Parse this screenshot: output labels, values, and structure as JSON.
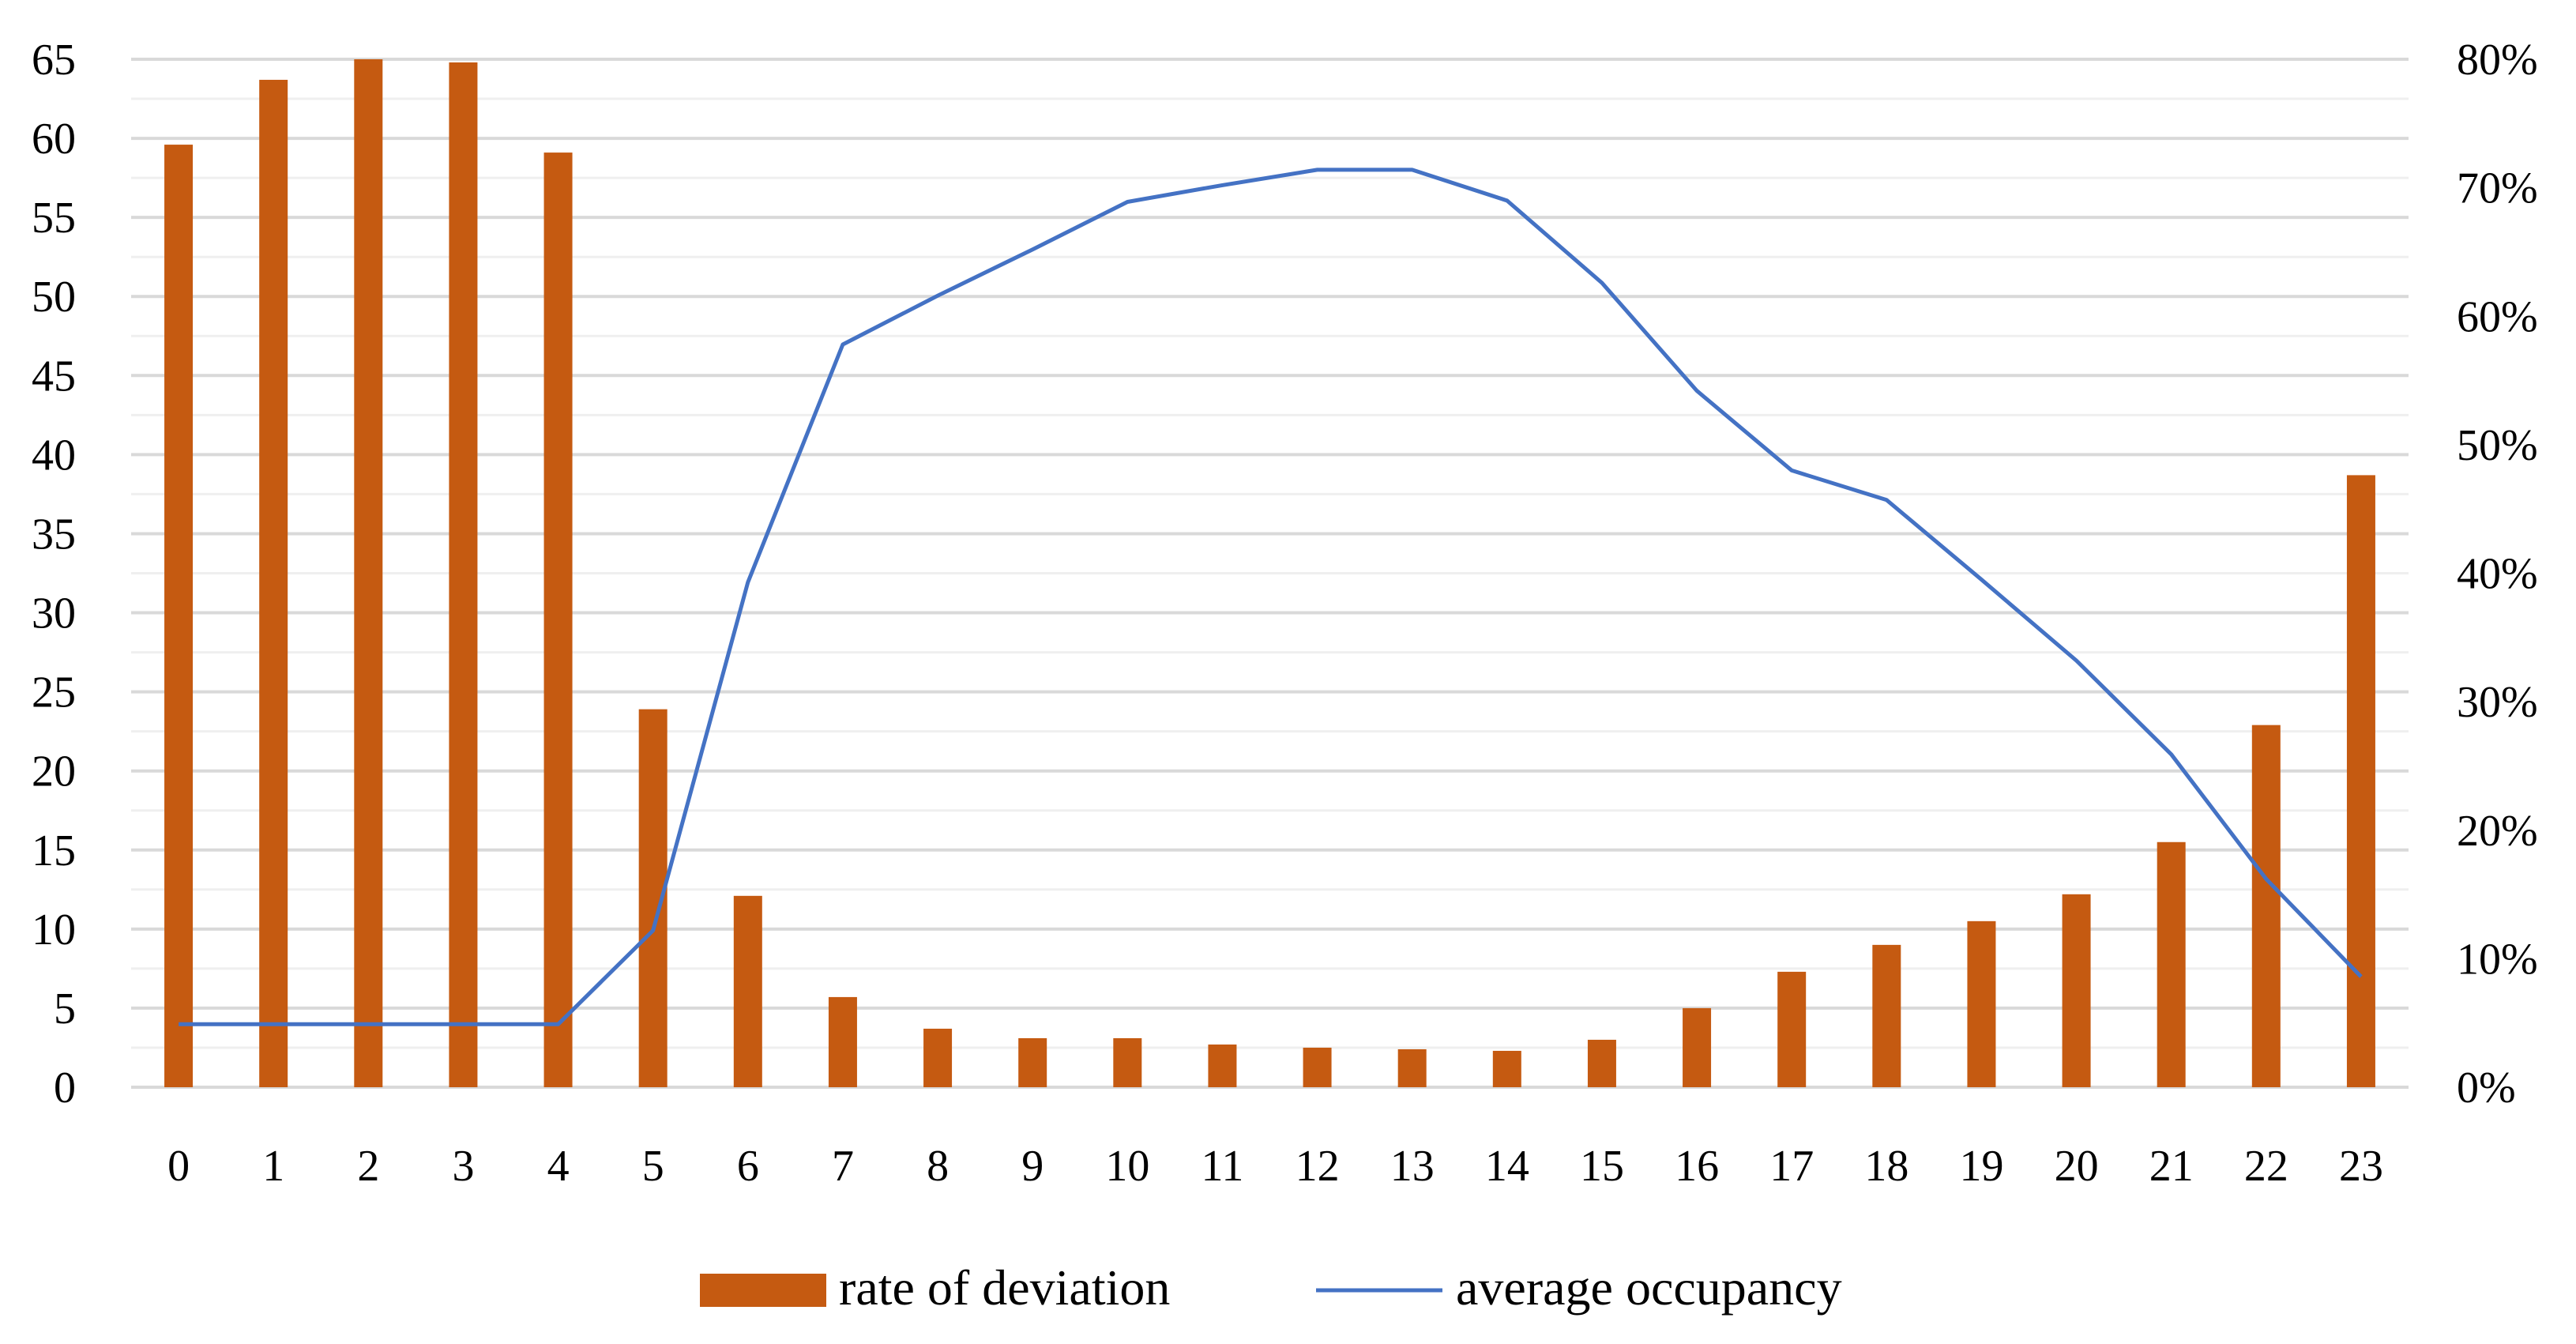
{
  "chart_data": {
    "type": "bar",
    "title": "",
    "xlabel": "",
    "ylabel": "",
    "categories": [
      "0",
      "1",
      "2",
      "3",
      "4",
      "5",
      "6",
      "7",
      "8",
      "9",
      "10",
      "11",
      "12",
      "13",
      "14",
      "15",
      "16",
      "17",
      "18",
      "19",
      "20",
      "21",
      "22",
      "23"
    ],
    "series": [
      {
        "name": "rate of deviation",
        "kind": "bar",
        "axis": "left",
        "color": "#c55a11",
        "values": [
          59.6,
          63.7,
          65.0,
          64.8,
          59.1,
          23.9,
          12.1,
          5.7,
          3.7,
          3.1,
          3.1,
          2.7,
          2.5,
          2.4,
          2.3,
          3.0,
          5.0,
          7.3,
          9.0,
          10.5,
          12.2,
          15.5,
          22.9,
          38.7
        ]
      },
      {
        "name": "average occupancy",
        "kind": "line",
        "axis": "right",
        "color": "#4472c4",
        "values": [
          0.049,
          0.049,
          0.049,
          0.049,
          0.049,
          0.122,
          0.393,
          0.578,
          0.616,
          0.652,
          0.689,
          0.702,
          0.714,
          0.714,
          0.69,
          0.626,
          0.542,
          0.48,
          0.457,
          0.395,
          0.332,
          0.259,
          0.162,
          0.086
        ]
      }
    ],
    "y_left": {
      "min": 0,
      "max": 65,
      "ticks": [
        "0",
        "5",
        "10",
        "15",
        "20",
        "25",
        "30",
        "35",
        "40",
        "45",
        "50",
        "55",
        "60",
        "65"
      ]
    },
    "y_right": {
      "min": 0,
      "max": 0.8,
      "ticks": [
        "0%",
        "10%",
        "20%",
        "30%",
        "40%",
        "50%",
        "60%",
        "70%",
        "80%"
      ]
    },
    "grid": true,
    "legend_position": "bottom"
  }
}
